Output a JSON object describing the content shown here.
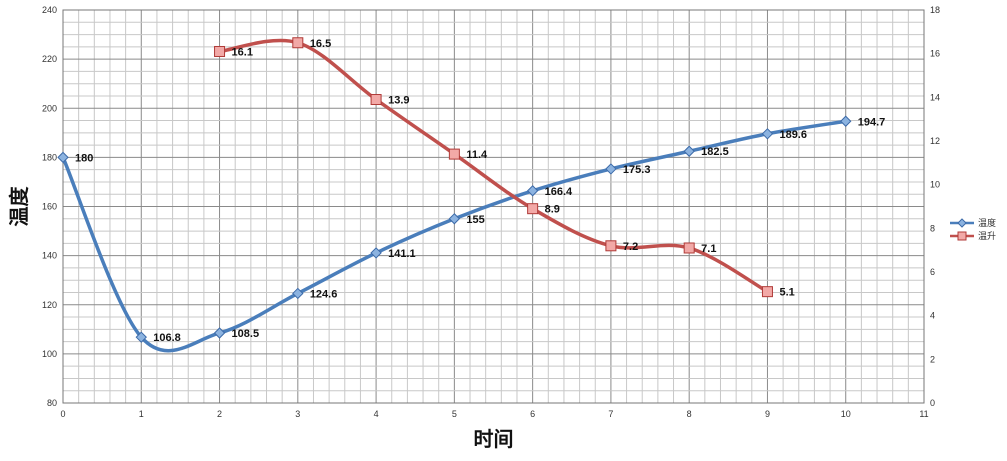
{
  "chart_data": {
    "type": "line",
    "title": "",
    "xlabel": "时间",
    "ylabel": "温度",
    "xlim": [
      0,
      11
    ],
    "ylim": [
      80,
      240
    ],
    "y2lim": [
      0,
      18
    ],
    "xticks": [
      "0",
      "1",
      "2",
      "3",
      "4",
      "5",
      "6",
      "7",
      "8",
      "9",
      "10",
      "11"
    ],
    "yticks": [
      "80",
      "100",
      "120",
      "140",
      "160",
      "180",
      "200",
      "220",
      "240"
    ],
    "y2ticks": [
      "0",
      "2",
      "4",
      "6",
      "8",
      "10",
      "12",
      "14",
      "16",
      "18"
    ],
    "grid": true,
    "legend_position": "right",
    "series": [
      {
        "name": "温度",
        "axis": "left",
        "color": "#4a7ebb",
        "marker": "diamond",
        "x": [
          0,
          1,
          2,
          3,
          4,
          5,
          6,
          7,
          8,
          9,
          10
        ],
        "values": [
          180,
          106.8,
          108.5,
          124.6,
          141.1,
          155,
          166.4,
          175.3,
          182.5,
          189.6,
          194.7
        ],
        "labels": [
          "180",
          "106.8",
          "108.5",
          "124.6",
          "141.1",
          "155",
          "166.4",
          "175.3",
          "182.5",
          "189.6",
          "194.7"
        ]
      },
      {
        "name": "温升",
        "axis": "right",
        "color": "#c0504d",
        "marker": "square",
        "x": [
          2,
          3,
          4,
          5,
          6,
          7,
          8,
          9
        ],
        "values": [
          16.1,
          16.5,
          13.9,
          11.4,
          8.9,
          7.2,
          7.1,
          5.1
        ],
        "labels": [
          "16.1",
          "16.5",
          "13.9",
          "11.4",
          "8.9",
          "7.2",
          "7.1",
          "5.1"
        ]
      }
    ]
  }
}
